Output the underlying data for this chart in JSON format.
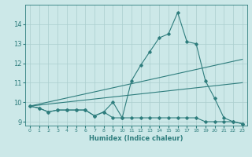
{
  "xlabel": "Humidex (Indice chaleur)",
  "x": [
    0,
    1,
    2,
    3,
    4,
    5,
    6,
    7,
    8,
    9,
    10,
    11,
    12,
    13,
    14,
    15,
    16,
    17,
    18,
    19,
    20,
    21,
    22,
    23
  ],
  "line1": [
    9.8,
    9.7,
    9.5,
    9.6,
    9.6,
    9.6,
    9.6,
    9.3,
    9.5,
    10.0,
    9.2,
    11.1,
    11.9,
    12.6,
    13.3,
    13.5,
    14.6,
    13.1,
    13.0,
    11.1,
    10.2,
    9.2,
    9.0,
    8.9
  ],
  "line2": [
    9.8,
    9.7,
    9.5,
    9.6,
    9.6,
    9.6,
    9.6,
    9.3,
    9.5,
    9.2,
    9.2,
    9.2,
    9.2,
    9.2,
    9.2,
    9.2,
    9.2,
    9.2,
    9.2,
    9.0,
    9.0,
    9.0,
    9.0,
    8.9
  ],
  "line3_x": [
    0,
    23
  ],
  "line3_y": [
    9.8,
    12.2
  ],
  "line4_x": [
    0,
    23
  ],
  "line4_y": [
    9.8,
    11.0
  ],
  "bg_color": "#cce8e8",
  "line_color": "#2e7d7d",
  "grid_color": "#aacece",
  "ylim": [
    8.8,
    15.0
  ],
  "xlim": [
    -0.5,
    23.5
  ],
  "yticks": [
    9,
    10,
    11,
    12,
    13,
    14
  ],
  "xticks": [
    0,
    1,
    2,
    3,
    4,
    5,
    6,
    7,
    8,
    9,
    10,
    11,
    12,
    13,
    14,
    15,
    16,
    17,
    18,
    19,
    20,
    21,
    22,
    23
  ]
}
